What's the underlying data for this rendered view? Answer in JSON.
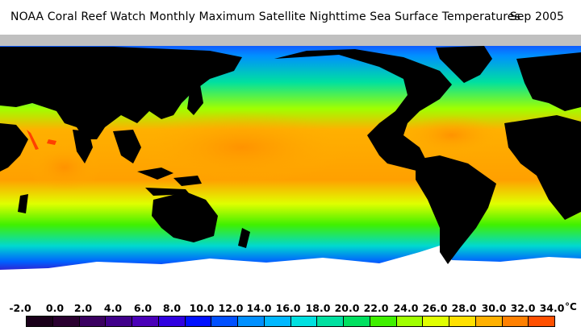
{
  "title": {
    "main": "NOAA Coral Reef Watch Monthly Maximum Satellite Nighttime Sea Surface Temperatures",
    "date": "Sep 2005"
  },
  "legend": {
    "unit": "°C",
    "ticks": [
      "-2.0",
      "0.0",
      "2.0",
      "4.0",
      "6.0",
      "8.0",
      "10.0",
      "12.0",
      "14.0",
      "16.0",
      "18.0",
      "20.0",
      "22.0",
      "24.0",
      "26.0",
      "28.0",
      "30.0",
      "32.0",
      "34.0"
    ],
    "colors": [
      "#1a001a",
      "#2a0030",
      "#3a0060",
      "#40008a",
      "#4a00b8",
      "#3000e0",
      "#0010ff",
      "#0050ff",
      "#0090ff",
      "#00b8ff",
      "#00e0e0",
      "#00e0a0",
      "#00e060",
      "#40f000",
      "#a0ff00",
      "#e0ff00",
      "#ffe000",
      "#ffb000",
      "#ff8000",
      "#ff5000"
    ]
  },
  "map": {
    "land_color": "#000000",
    "ice_color": "#c0c0c0",
    "sea_ice_white": "#ffffff"
  }
}
